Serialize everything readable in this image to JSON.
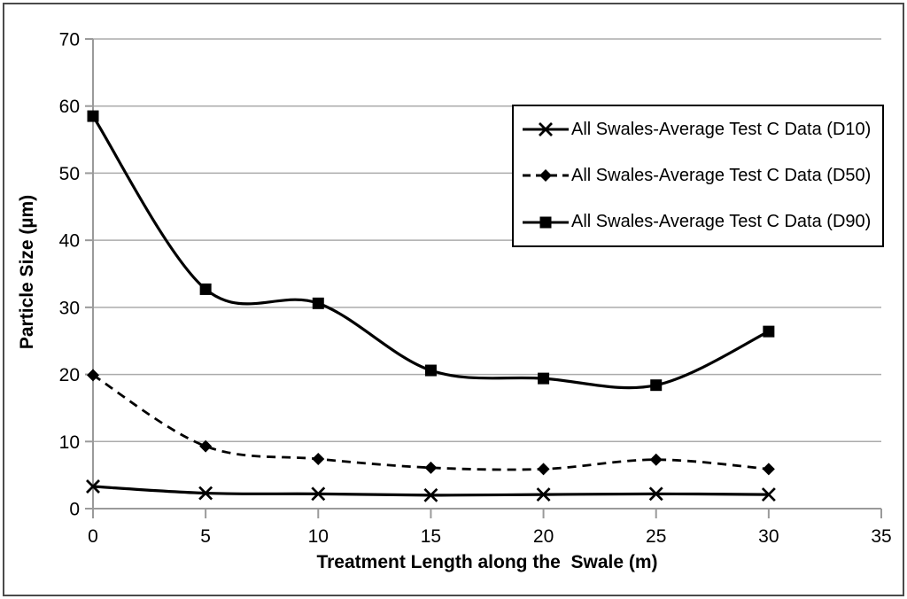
{
  "figure": {
    "background": "#ffffff",
    "border_color": "#4a4a4a"
  },
  "chart_data": {
    "type": "line",
    "title": "",
    "xlabel": "Treatment Length along the  Swale (m)",
    "ylabel": "Particle Size (µm)",
    "x": [
      0,
      5,
      10,
      15,
      20,
      25,
      30
    ],
    "series": [
      {
        "name": "All Swales-Average Test C Data (D10)",
        "marker": "x",
        "line": "solid",
        "color": "#000000",
        "values": [
          3.3,
          2.3,
          2.2,
          2.0,
          2.1,
          2.2,
          2.1
        ]
      },
      {
        "name": "All Swales-Average Test C Data (D50)",
        "marker": "diamond",
        "line": "dashed",
        "color": "#000000",
        "values": [
          19.9,
          9.3,
          7.4,
          6.1,
          5.9,
          7.3,
          5.9
        ]
      },
      {
        "name": "All Swales-Average Test C Data (D90)",
        "marker": "square",
        "line": "solid",
        "color": "#000000",
        "values": [
          58.5,
          32.7,
          30.6,
          20.6,
          19.4,
          18.4,
          26.4
        ]
      }
    ],
    "xlim": [
      0,
      35
    ],
    "ylim": [
      0,
      70
    ],
    "xticks": [
      0,
      5,
      10,
      15,
      20,
      25,
      30,
      35
    ],
    "yticks": [
      0,
      10,
      20,
      30,
      40,
      50,
      60,
      70
    ],
    "smoothed": true,
    "grid": "horizontal-only",
    "legend_position": "upper-right",
    "colors": {
      "series": "#000000",
      "grid": "#ababab",
      "axis": "#9a9a9a",
      "tick_label": "#000000",
      "legend_border": "#000000"
    }
  }
}
